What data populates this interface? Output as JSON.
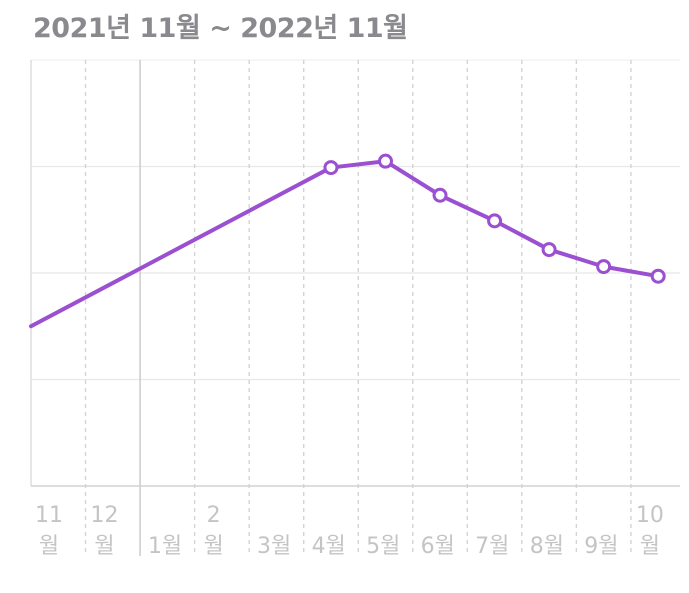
{
  "header": {
    "title": "2021년 11월 ~ 2022년 11월"
  },
  "chart_data": {
    "type": "line",
    "title": "2021년 11월 ~ 2022년 11월",
    "x_ticks": [
      {
        "t": 0,
        "lines": [
          "11",
          "월"
        ],
        "dashed": true
      },
      {
        "t": 1,
        "lines": [
          "12",
          "월"
        ],
        "dashed": true
      },
      {
        "t": 2,
        "lines": [
          "1월"
        ],
        "dashed": false
      },
      {
        "t": 3,
        "lines": [
          "2",
          "월"
        ],
        "dashed": true
      },
      {
        "t": 4,
        "lines": [
          "3월"
        ],
        "dashed": true
      },
      {
        "t": 5,
        "lines": [
          "4월"
        ],
        "dashed": true
      },
      {
        "t": 6,
        "lines": [
          "5월"
        ],
        "dashed": true
      },
      {
        "t": 7,
        "lines": [
          "6월"
        ],
        "dashed": true
      },
      {
        "t": 8,
        "lines": [
          "7월"
        ],
        "dashed": true
      },
      {
        "t": 9,
        "lines": [
          "8월"
        ],
        "dashed": true
      },
      {
        "t": 10,
        "lines": [
          "9월"
        ],
        "dashed": true
      },
      {
        "t": 11,
        "lines": [
          "10",
          "월"
        ],
        "dashed": true
      }
    ],
    "xlim": [
      0,
      11.9
    ],
    "ylim": [
      0,
      4
    ],
    "yticks": [
      1,
      2,
      3
    ],
    "y_labels_shown": false,
    "grid": true,
    "series": [
      {
        "color": "#9b4fd1",
        "points": [
          {
            "x": 0,
            "y": 1.5,
            "marker": false
          },
          {
            "x": 5.5,
            "y": 2.99,
            "marker": true
          },
          {
            "x": 6.5,
            "y": 3.05,
            "marker": true
          },
          {
            "x": 7.5,
            "y": 2.73,
            "marker": true
          },
          {
            "x": 8.5,
            "y": 2.49,
            "marker": true
          },
          {
            "x": 9.5,
            "y": 2.22,
            "marker": true
          },
          {
            "x": 10.5,
            "y": 2.06,
            "marker": true
          },
          {
            "x": 11.5,
            "y": 1.97,
            "marker": true
          }
        ]
      }
    ]
  }
}
